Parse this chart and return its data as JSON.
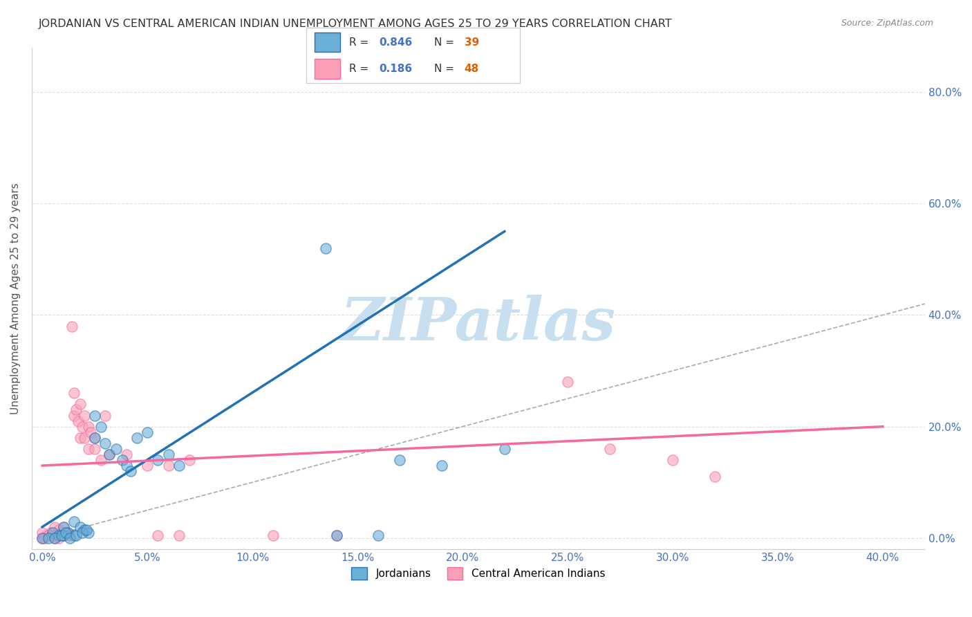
{
  "title": "JORDANIAN VS CENTRAL AMERICAN INDIAN UNEMPLOYMENT AMONG AGES 25 TO 29 YEARS CORRELATION CHART",
  "source": "Source: ZipAtlas.com",
  "xlabel_ticks": [
    0.0,
    0.05,
    0.1,
    0.15,
    0.2,
    0.25,
    0.3,
    0.35,
    0.4
  ],
  "ylabel_ticks": [
    0.0,
    0.2,
    0.4,
    0.6,
    0.8
  ],
  "ylabel_label": "Unemployment Among Ages 25 to 29 years",
  "xlim": [
    -0.005,
    0.42
  ],
  "ylim": [
    -0.02,
    0.88
  ],
  "legend_label1": "Jordanians",
  "legend_label2": "Central American Indians",
  "blue_color": "#6baed6",
  "pink_color": "#fa9fb5",
  "blue_line_color": "#2171b5",
  "pink_line_color": "#f768a1",
  "blue_scatter": [
    [
      0.0,
      0.0
    ],
    [
      0.005,
      0.01
    ],
    [
      0.008,
      0.005
    ],
    [
      0.01,
      0.02
    ],
    [
      0.01,
      0.005
    ],
    [
      0.012,
      0.01
    ],
    [
      0.015,
      0.03
    ],
    [
      0.015,
      0.005
    ],
    [
      0.018,
      0.02
    ],
    [
      0.02,
      0.015
    ],
    [
      0.022,
      0.01
    ],
    [
      0.025,
      0.22
    ],
    [
      0.025,
      0.18
    ],
    [
      0.028,
      0.2
    ],
    [
      0.03,
      0.17
    ],
    [
      0.032,
      0.15
    ],
    [
      0.035,
      0.16
    ],
    [
      0.038,
      0.14
    ],
    [
      0.04,
      0.13
    ],
    [
      0.042,
      0.12
    ],
    [
      0.045,
      0.18
    ],
    [
      0.05,
      0.19
    ],
    [
      0.055,
      0.14
    ],
    [
      0.06,
      0.15
    ],
    [
      0.065,
      0.13
    ],
    [
      0.003,
      0.0
    ],
    [
      0.006,
      0.0
    ],
    [
      0.009,
      0.005
    ],
    [
      0.011,
      0.01
    ],
    [
      0.013,
      0.0
    ],
    [
      0.016,
      0.005
    ],
    [
      0.019,
      0.01
    ],
    [
      0.021,
      0.015
    ],
    [
      0.17,
      0.14
    ],
    [
      0.19,
      0.13
    ],
    [
      0.22,
      0.16
    ],
    [
      0.135,
      0.52
    ],
    [
      0.14,
      0.005
    ],
    [
      0.16,
      0.005
    ]
  ],
  "pink_scatter": [
    [
      0.0,
      0.0
    ],
    [
      0.002,
      0.005
    ],
    [
      0.004,
      0.01
    ],
    [
      0.005,
      0.005
    ],
    [
      0.006,
      0.02
    ],
    [
      0.007,
      0.005
    ],
    [
      0.008,
      0.015
    ],
    [
      0.009,
      0.01
    ],
    [
      0.01,
      0.02
    ],
    [
      0.01,
      0.005
    ],
    [
      0.012,
      0.01
    ],
    [
      0.013,
      0.005
    ],
    [
      0.014,
      0.38
    ],
    [
      0.015,
      0.22
    ],
    [
      0.015,
      0.26
    ],
    [
      0.016,
      0.23
    ],
    [
      0.017,
      0.21
    ],
    [
      0.018,
      0.18
    ],
    [
      0.018,
      0.24
    ],
    [
      0.019,
      0.2
    ],
    [
      0.02,
      0.22
    ],
    [
      0.02,
      0.18
    ],
    [
      0.022,
      0.16
    ],
    [
      0.022,
      0.2
    ],
    [
      0.023,
      0.19
    ],
    [
      0.025,
      0.16
    ],
    [
      0.025,
      0.18
    ],
    [
      0.028,
      0.14
    ],
    [
      0.03,
      0.22
    ],
    [
      0.032,
      0.15
    ],
    [
      0.04,
      0.15
    ],
    [
      0.05,
      0.13
    ],
    [
      0.055,
      0.005
    ],
    [
      0.06,
      0.13
    ],
    [
      0.065,
      0.005
    ],
    [
      0.07,
      0.14
    ],
    [
      0.11,
      0.005
    ],
    [
      0.14,
      0.005
    ],
    [
      0.25,
      0.28
    ],
    [
      0.27,
      0.16
    ],
    [
      0.3,
      0.14
    ],
    [
      0.32,
      0.11
    ],
    [
      0.0,
      0.01
    ],
    [
      0.001,
      0.0
    ],
    [
      0.003,
      0.005
    ],
    [
      0.006,
      0.0
    ],
    [
      0.008,
      0.0
    ],
    [
      0.009,
      0.005
    ]
  ],
  "blue_line_x": [
    0.0,
    0.22
  ],
  "blue_line_y": [
    0.02,
    0.55
  ],
  "pink_line_x": [
    0.0,
    0.4
  ],
  "pink_line_y": [
    0.13,
    0.2
  ],
  "ref_line_x": [
    0.0,
    0.82
  ],
  "ref_line_y": [
    0.0,
    0.82
  ],
  "watermark": "ZIPatlas",
  "watermark_color": "#c8dff0",
  "background_color": "#ffffff",
  "grid_color": "#dddddd",
  "r1_val": "0.846",
  "n1_val": "39",
  "r2_val": "0.186",
  "n2_val": "48"
}
